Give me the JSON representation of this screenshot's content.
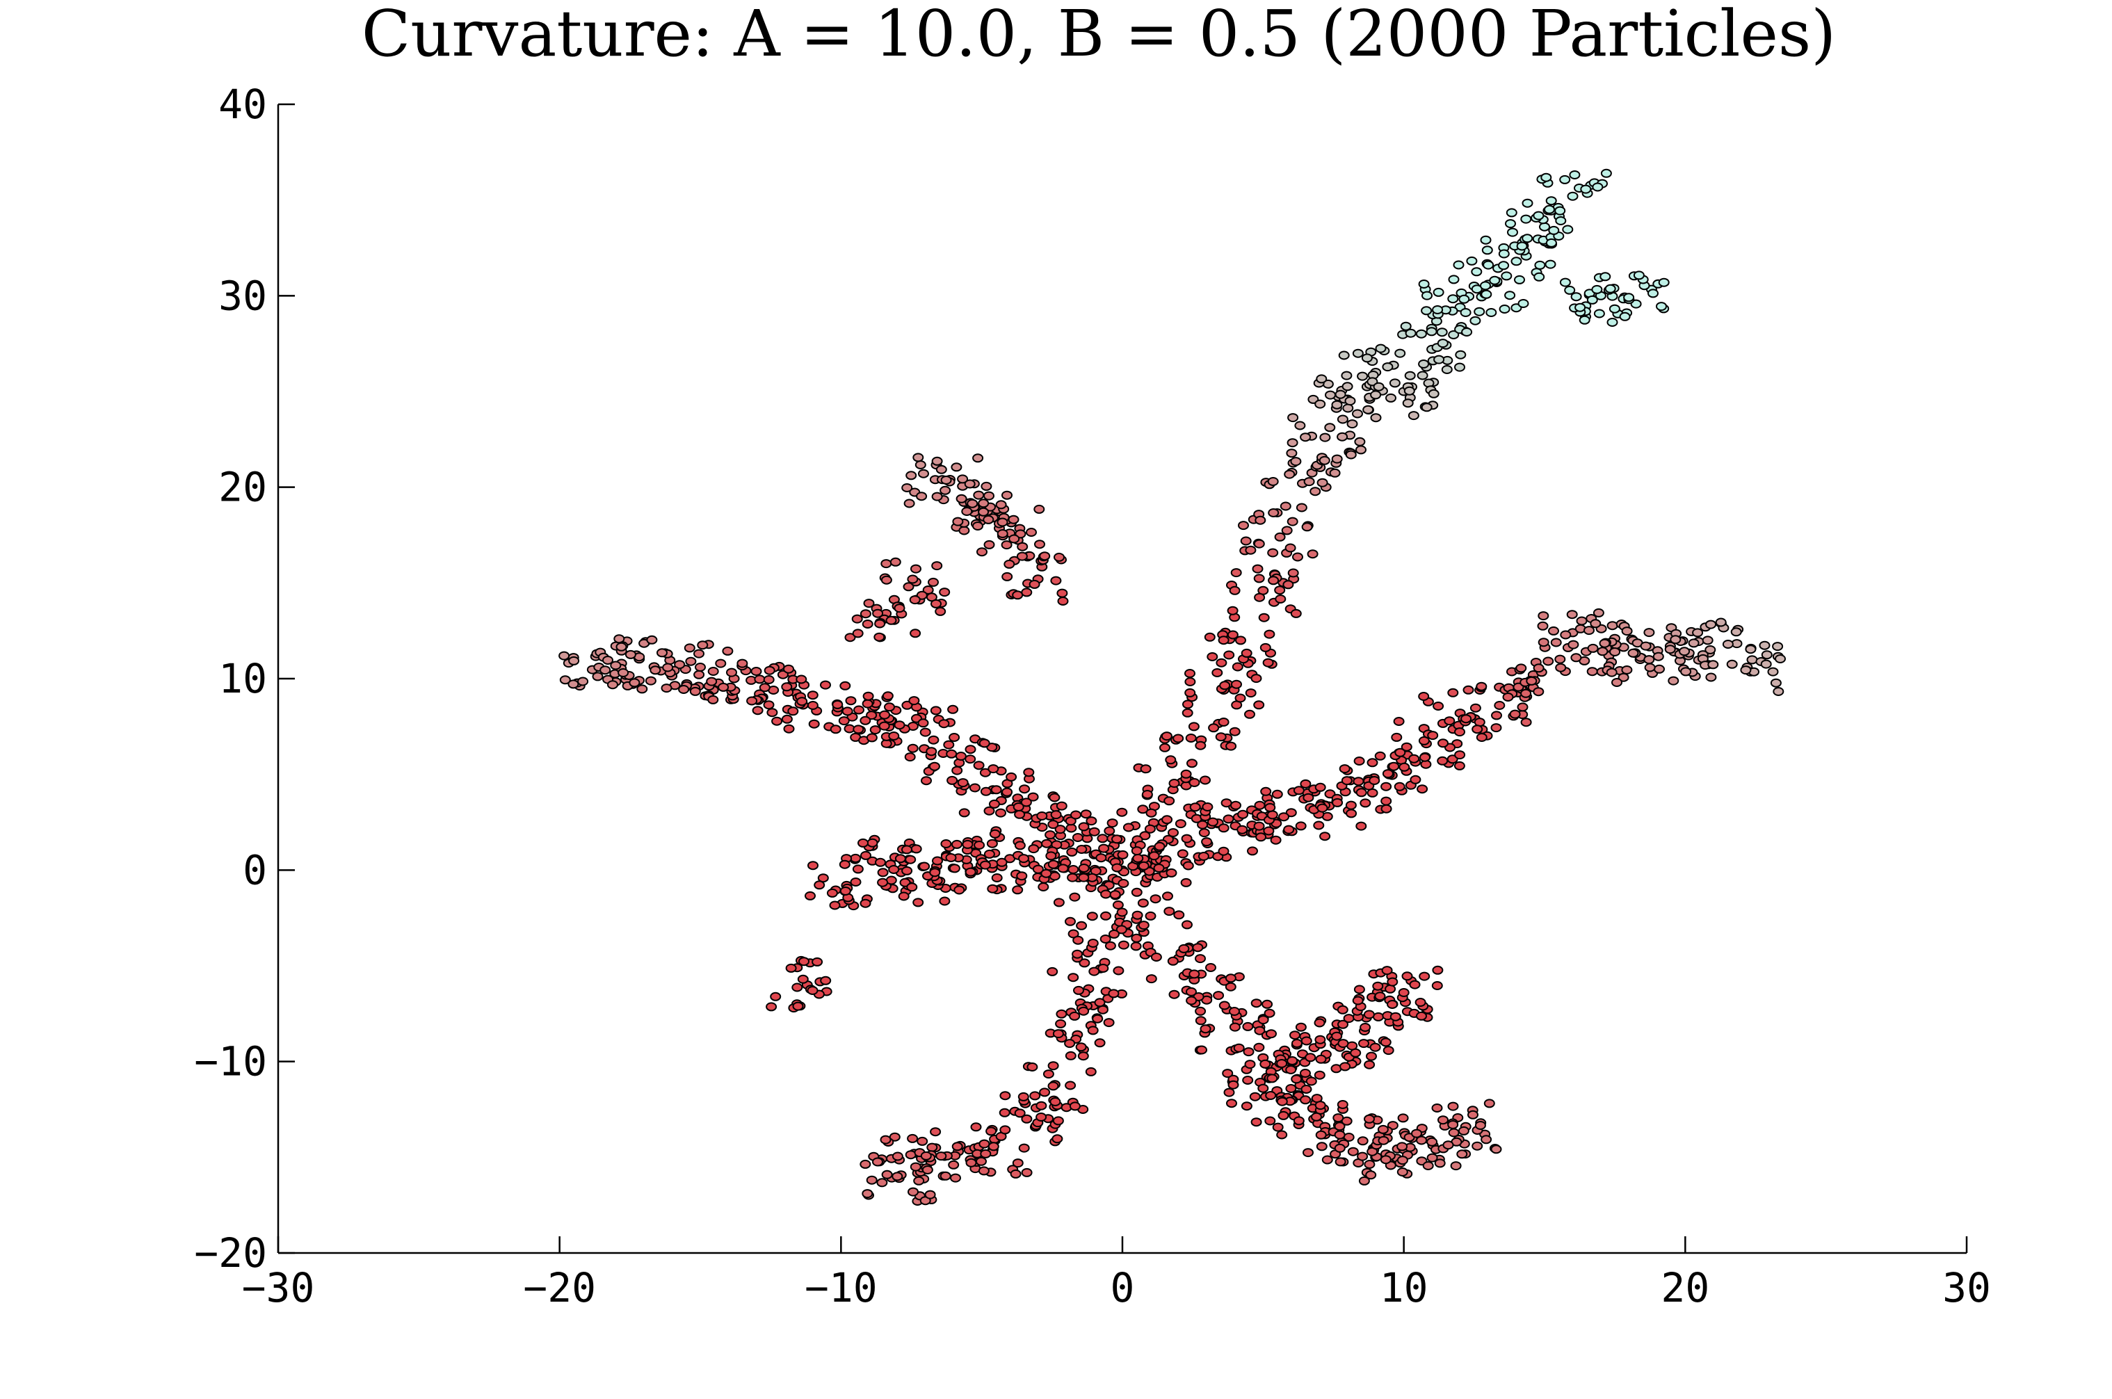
{
  "chart_data": {
    "type": "scatter",
    "title": "Curvature: A = 10.0, B = 0.5 (2000 Particles)",
    "xlabel": "",
    "ylabel": "",
    "xlim": [
      -30,
      30
    ],
    "ylim": [
      -20,
      40
    ],
    "xticks": [
      -30,
      -20,
      -10,
      0,
      10,
      20,
      30
    ],
    "yticks": [
      -20,
      -10,
      0,
      10,
      20,
      30,
      40
    ],
    "xtick_labels": [
      "−30",
      "−20",
      "−10",
      "0",
      "10",
      "20",
      "30"
    ],
    "ytick_labels": [
      "−20",
      "−10",
      "0",
      "10",
      "20",
      "30",
      "40"
    ],
    "grid": false,
    "legend": "none",
    "particle_count": 2000,
    "colors": {
      "inner": "#e0464e",
      "outer": "#bff0e6",
      "edge": "#000000"
    },
    "series": [
      {
        "color_gradient": [
          "#e0464e",
          "#bff0e6"
        ],
        "description_points": "2000 particles of a diffusion-limited aggregate; color shifts from red near the seed (0,0) to pale cyan at branch tips",
        "x": [
          0,
          1.2,
          2.4,
          3.6,
          4.8,
          6.0,
          7.2,
          8.4,
          9.6,
          10.8,
          12.0,
          13.4,
          14.6,
          16.0,
          17.2,
          18.4,
          19.6,
          20.8,
          22.2,
          0.8,
          1.8,
          2.8,
          3.6,
          4.2,
          5.0,
          5.6,
          6.4,
          7.2,
          8.0,
          9.0,
          10.0,
          11.0,
          12.0,
          13.0,
          14.0,
          15.0,
          16.0,
          17.0,
          18.0,
          -1.0,
          -2.2,
          -3.4,
          -4.6,
          -5.8,
          -7.0,
          -8.2,
          -9.6,
          -11.0,
          -12.4,
          -13.8,
          -15.0,
          -16.4,
          -17.8,
          -18.6,
          -1.2,
          -2.6,
          -4.0,
          -5.4,
          -6.6,
          -7.6,
          -8.6,
          -9.8,
          -11.2,
          1.0,
          2.0,
          3.0,
          4.0,
          5.0,
          6.4,
          7.6,
          8.6,
          9.6,
          10.0,
          -0.6,
          -1.2,
          -1.6,
          -2.4,
          -3.4,
          -4.6,
          -6.0,
          -7.4,
          -8.0,
          5.0,
          6.0,
          6.8,
          7.8,
          9.0,
          10.0,
          11.0,
          12.2,
          -3.0,
          -4.0,
          -4.6,
          -5.4,
          -6.4,
          -7.6,
          -8.4
        ],
        "y": [
          0,
          0.5,
          1.4,
          2.2,
          2.8,
          3.0,
          3.4,
          4.2,
          5.4,
          6.6,
          8.2,
          8.6,
          10.2,
          12.4,
          11.6,
          11.0,
          11.4,
          12.0,
          10.6,
          1.8,
          4.2,
          6.8,
          9.4,
          12.0,
          14.6,
          17.4,
          20.2,
          22.6,
          24.6,
          26.0,
          25.0,
          27.2,
          29.4,
          30.6,
          31.8,
          33.6,
          35.2,
          30.0,
          29.8,
          0.8,
          1.8,
          2.8,
          4.2,
          5.6,
          7.2,
          7.8,
          8.0,
          8.6,
          9.4,
          10.0,
          10.6,
          10.4,
          10.8,
          10.6,
          -0.4,
          0.2,
          0.6,
          -0.2,
          0.2,
          -0.6,
          0.4,
          -0.8,
          -6.0,
          -2.4,
          -4.6,
          -6.6,
          -8.2,
          -9.8,
          -9.6,
          -9.0,
          -8.4,
          -7.0,
          -6.4,
          -3.6,
          -6.2,
          -8.6,
          -11.2,
          -13.0,
          -14.6,
          -15.4,
          -14.8,
          -16.0,
          -11.4,
          -12.0,
          -13.0,
          -14.2,
          -15.0,
          -14.6,
          -14.2,
          -13.4,
          15.2,
          17.6,
          18.4,
          19.2,
          20.4,
          14.8,
          13.4
        ]
      }
    ]
  }
}
